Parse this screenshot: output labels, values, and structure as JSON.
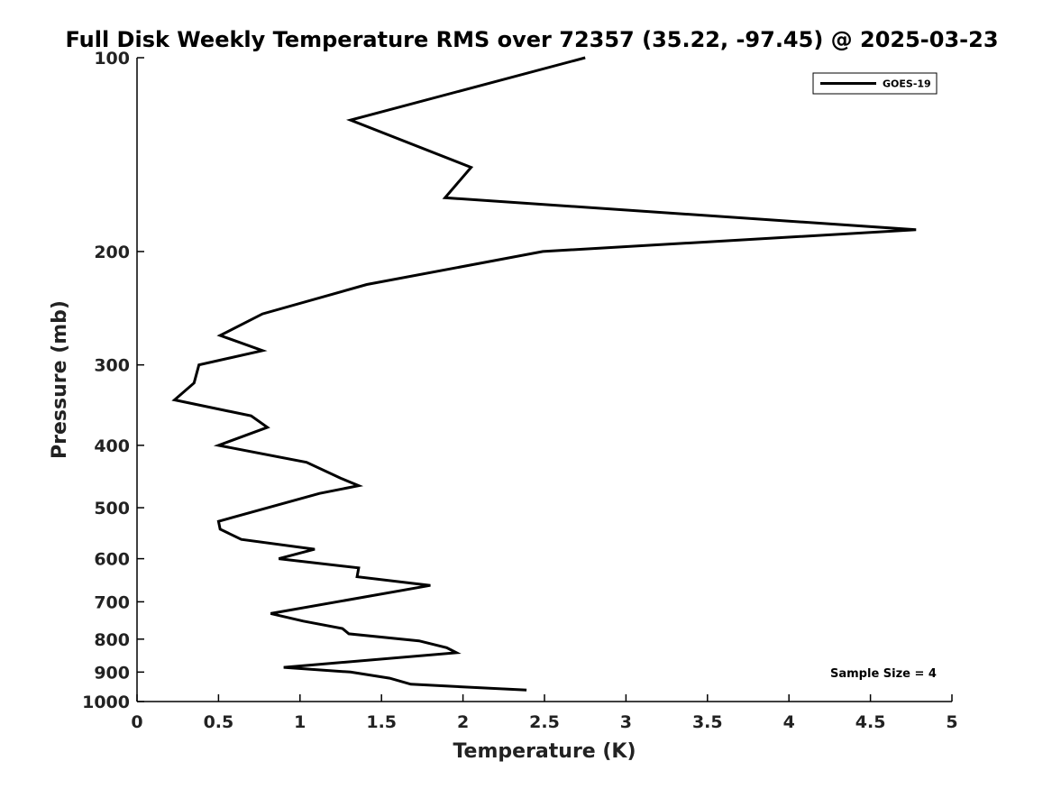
{
  "chart_data": {
    "type": "line",
    "title": "Full Disk Weekly Temperature RMS over 72357 (35.22, -97.45) @ 2025-03-23",
    "xlabel": "Temperature (K)",
    "ylabel": "Pressure (mb)",
    "xlim": [
      0,
      5
    ],
    "ylim": [
      100,
      1000
    ],
    "y_scale": "log",
    "y_reversed": true,
    "x_ticks": [
      "0",
      "0.5",
      "1",
      "1.5",
      "2",
      "2.5",
      "3",
      "3.5",
      "4",
      "4.5",
      "5"
    ],
    "y_ticks": [
      "100",
      "200",
      "300",
      "400",
      "500",
      "600",
      "700",
      "800",
      "900",
      "1000"
    ],
    "grid": false,
    "legend_position": "top-right",
    "series": [
      {
        "name": "GOES-19",
        "color": "#000000",
        "points": [
          {
            "x": 2.75,
            "y": 100
          },
          {
            "x": 1.31,
            "y": 125
          },
          {
            "x": 2.05,
            "y": 148
          },
          {
            "x": 1.89,
            "y": 165
          },
          {
            "x": 4.78,
            "y": 185
          },
          {
            "x": 2.49,
            "y": 200
          },
          {
            "x": 1.41,
            "y": 225
          },
          {
            "x": 0.77,
            "y": 250
          },
          {
            "x": 0.51,
            "y": 270
          },
          {
            "x": 0.77,
            "y": 285
          },
          {
            "x": 0.38,
            "y": 300
          },
          {
            "x": 0.35,
            "y": 320
          },
          {
            "x": 0.23,
            "y": 340
          },
          {
            "x": 0.7,
            "y": 360
          },
          {
            "x": 0.8,
            "y": 375
          },
          {
            "x": 0.5,
            "y": 400
          },
          {
            "x": 1.04,
            "y": 425
          },
          {
            "x": 1.25,
            "y": 450
          },
          {
            "x": 1.36,
            "y": 462
          },
          {
            "x": 1.12,
            "y": 475
          },
          {
            "x": 0.5,
            "y": 525
          },
          {
            "x": 0.51,
            "y": 540
          },
          {
            "x": 0.64,
            "y": 560
          },
          {
            "x": 1.09,
            "y": 580
          },
          {
            "x": 0.87,
            "y": 600
          },
          {
            "x": 1.36,
            "y": 620
          },
          {
            "x": 1.35,
            "y": 640
          },
          {
            "x": 1.8,
            "y": 660
          },
          {
            "x": 0.82,
            "y": 730
          },
          {
            "x": 1.02,
            "y": 750
          },
          {
            "x": 1.26,
            "y": 770
          },
          {
            "x": 1.3,
            "y": 785
          },
          {
            "x": 1.73,
            "y": 805
          },
          {
            "x": 1.9,
            "y": 825
          },
          {
            "x": 1.96,
            "y": 840
          },
          {
            "x": 0.9,
            "y": 885
          },
          {
            "x": 1.31,
            "y": 900
          },
          {
            "x": 1.55,
            "y": 920
          },
          {
            "x": 1.68,
            "y": 940
          },
          {
            "x": 2.39,
            "y": 960
          }
        ]
      }
    ],
    "annotations": [
      "Sample Size = 4"
    ]
  }
}
